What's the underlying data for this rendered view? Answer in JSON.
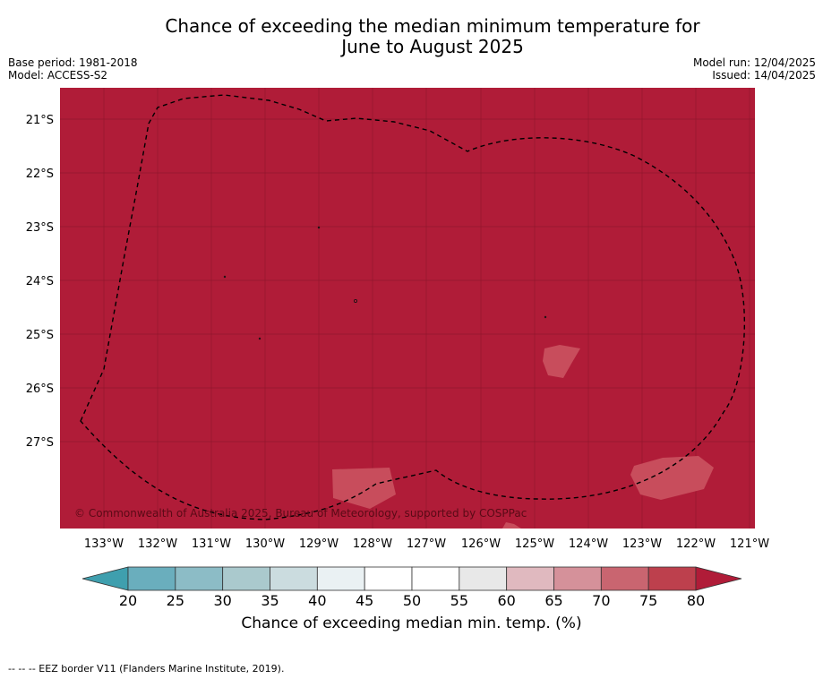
{
  "title_line1": "Chance of exceeding the median minimum temperature for",
  "title_line2": "June to August 2025",
  "base_period": "Base period: 1981-2018",
  "model": "Model: ACCESS-S2",
  "model_run": "Model run: 12/04/2025",
  "issued": "Issued: 14/04/2025",
  "copyright": "© Commonwealth of Australia 2025, Bureau of Meteorology, supported by COSPPac",
  "footnote": "--  --  -- EEZ border V11 (Flanders Marine Institute, 2019).",
  "colorbar": {
    "title": "Chance of exceeding median min. temp. (%)",
    "ticks": [
      "20",
      "25",
      "30",
      "35",
      "40",
      "45",
      "50",
      "55",
      "60",
      "65",
      "70",
      "75",
      "80"
    ],
    "colors": [
      "#3f9fae",
      "#6aaebd",
      "#8cbcc6",
      "#aac9cd",
      "#cbdcdf",
      "#eaf1f3",
      "#ffffff",
      "#ffffff",
      "#e8e8e8",
      "#e0b9bf",
      "#d5919a",
      "#c96570",
      "#bd404d",
      "#b01c38"
    ]
  },
  "map": {
    "lon_labels": [
      "133°W",
      "132°W",
      "131°W",
      "130°W",
      "129°W",
      "128°W",
      "127°W",
      "126°W",
      "125°W",
      "124°W",
      "123°W",
      "122°W",
      "121°W"
    ],
    "lat_labels": [
      "21°S",
      "22°S",
      "23°S",
      "24°S",
      "25°S",
      "26°S",
      "27°S"
    ],
    "background_color": "#b01c38",
    "patch_color": "#c84d5c"
  }
}
